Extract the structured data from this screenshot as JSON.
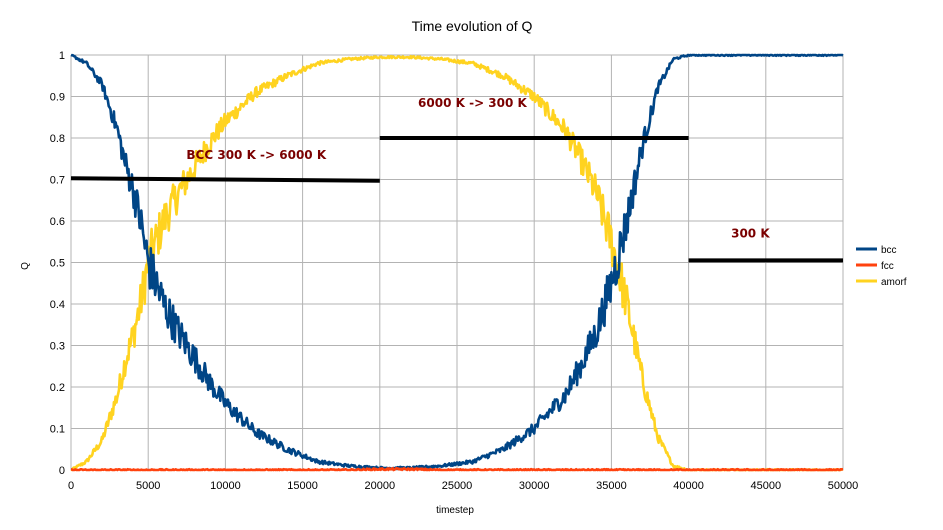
{
  "chart_data": {
    "type": "line",
    "title": "Time evolution of Q",
    "xlabel": "timestep",
    "ylabel": "Q",
    "xlim": [
      0,
      50000
    ],
    "ylim": [
      0,
      1
    ],
    "x_ticks": [
      "0",
      "5000",
      "10000",
      "15000",
      "20000",
      "25000",
      "30000",
      "35000",
      "40000",
      "45000",
      "50000"
    ],
    "y_ticks": [
      "0",
      "0.1",
      "0.2",
      "0.3",
      "0.4",
      "0.5",
      "0.6",
      "0.7",
      "0.8",
      "0.9",
      "1"
    ],
    "grid": true,
    "legend_position": "right",
    "x": [
      0,
      1000,
      2000,
      3000,
      3500,
      4000,
      4500,
      5000,
      6000,
      7000,
      8000,
      9000,
      10000,
      12000,
      14000,
      16000,
      18000,
      20000,
      22000,
      24000,
      26000,
      28000,
      30000,
      32000,
      33000,
      34000,
      35000,
      36000,
      37000,
      38000,
      39000,
      40000,
      45000,
      50000
    ],
    "series": [
      {
        "name": "bcc",
        "color": "#004586",
        "values": [
          1.0,
          0.98,
          0.93,
          0.82,
          0.74,
          0.68,
          0.6,
          0.5,
          0.4,
          0.33,
          0.27,
          0.21,
          0.16,
          0.09,
          0.05,
          0.02,
          0.01,
          0.005,
          0.005,
          0.01,
          0.02,
          0.05,
          0.1,
          0.18,
          0.25,
          0.33,
          0.45,
          0.6,
          0.78,
          0.92,
          0.99,
          1.0,
          1.0,
          1.0
        ]
      },
      {
        "name": "fcc",
        "color": "#ff420e",
        "values": [
          0,
          0,
          0,
          0,
          0,
          0,
          0,
          0,
          0,
          0,
          0,
          0,
          0,
          0,
          0,
          0,
          0,
          0.002,
          0.002,
          0,
          0,
          0,
          0,
          0,
          0,
          0,
          0,
          0,
          0,
          0,
          0,
          0,
          0,
          0
        ]
      },
      {
        "name": "amorf",
        "color": "#ffd320",
        "values": [
          0,
          0.02,
          0.07,
          0.18,
          0.26,
          0.32,
          0.4,
          0.5,
          0.6,
          0.67,
          0.73,
          0.79,
          0.84,
          0.91,
          0.95,
          0.98,
          0.99,
          0.995,
          0.995,
          0.99,
          0.98,
          0.95,
          0.9,
          0.82,
          0.75,
          0.67,
          0.55,
          0.4,
          0.22,
          0.08,
          0.01,
          0.0,
          0.0,
          0.0
        ]
      }
    ],
    "annotations": [
      {
        "text": "BCC 300 K -> 6000 K",
        "x0": 0,
        "x1": 20000,
        "y0": 0.703,
        "y1": 0.697,
        "label_x": 12000,
        "label_y": 0.75
      },
      {
        "text": "6000 K -> 300 K",
        "x0": 20000,
        "x1": 40000,
        "y0": 0.8,
        "y1": 0.8,
        "label_x": 26000,
        "label_y": 0.875
      },
      {
        "text": "300 K",
        "x0": 40000,
        "x1": 50000,
        "y0": 0.505,
        "y1": 0.505,
        "label_x": 44000,
        "label_y": 0.56
      }
    ]
  }
}
